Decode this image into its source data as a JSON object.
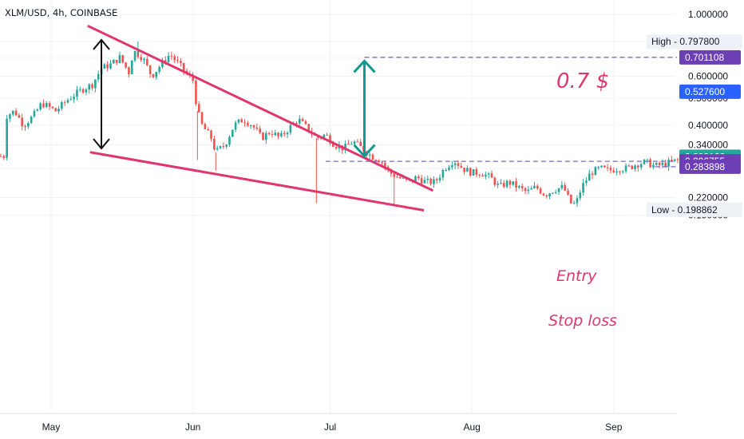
{
  "chart_data": {
    "type": "candlestick",
    "title": "XLM/USD, 4h, COINBASE",
    "y_scale": "log",
    "ylim": [
      0.186,
      1.03
    ],
    "x_ticks": [
      "May",
      "Jun",
      "Jul",
      "Aug",
      "Sep"
    ],
    "y_ticks": [
      "1.000000",
      "0.600000",
      "0.500000",
      "0.400000",
      "0.340000",
      "0.280000",
      "0.220000",
      "0.190000"
    ],
    "price_labels": [
      {
        "label": "High",
        "value": "0.797800",
        "style": "high"
      },
      {
        "value": "0.701108",
        "style": "purple"
      },
      {
        "value": "0.527600",
        "style": "blue"
      },
      {
        "value": "0.308126",
        "style": "green"
      },
      {
        "value": "0.296755",
        "style": "purple"
      },
      {
        "value": "0.283898",
        "style": "purple"
      },
      {
        "label": "Low",
        "value": "0.198862",
        "style": "low"
      }
    ],
    "annotations": {
      "target": "0.7 $",
      "entry": "Entry",
      "stop_loss": "Stop loss"
    },
    "colors": {
      "up": "#26a69a",
      "down": "#ef5350",
      "wedge": "#e0366c",
      "arrow_target": "#0f9b8e",
      "arrow_height": "#111111",
      "purple": "#6c3fb5",
      "blue": "#2962ff",
      "green": "#26a69a",
      "dash": "#7b68c8",
      "annotation": "#e0366c"
    }
  }
}
